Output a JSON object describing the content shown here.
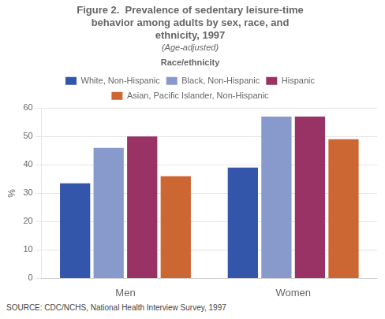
{
  "chart_data": {
    "type": "bar",
    "title": "Figure 2.  Prevalence of sedentary leisure-time\nbehavior among adults by sex, race, and\nethnicity, 1997",
    "subtitle": "(Age-adjusted)",
    "ylabel": "%",
    "legend_title": "Race/ethnicity",
    "source": "SOURCE: CDC/NCHS, National Health Interview Survey, 1997",
    "categories": [
      "Men",
      "Women"
    ],
    "series": [
      {
        "name": "White, Non-Hispanic",
        "color": "#3355aa",
        "values": [
          33.5,
          39.0
        ]
      },
      {
        "name": "Black, Non-Hispanic",
        "color": "#8899cc",
        "values": [
          46.0,
          57.0
        ]
      },
      {
        "name": "Hispanic",
        "color": "#993366",
        "values": [
          50.0,
          57.0
        ]
      },
      {
        "name": "Asian, Pacific Islander, Non-Hispanic",
        "color": "#cc6633",
        "values": [
          36.0,
          49.0
        ]
      }
    ],
    "ylim": [
      0,
      60
    ],
    "yticks": [
      0,
      10,
      20,
      30,
      40,
      50,
      60
    ],
    "grid": true,
    "legend": "top"
  }
}
